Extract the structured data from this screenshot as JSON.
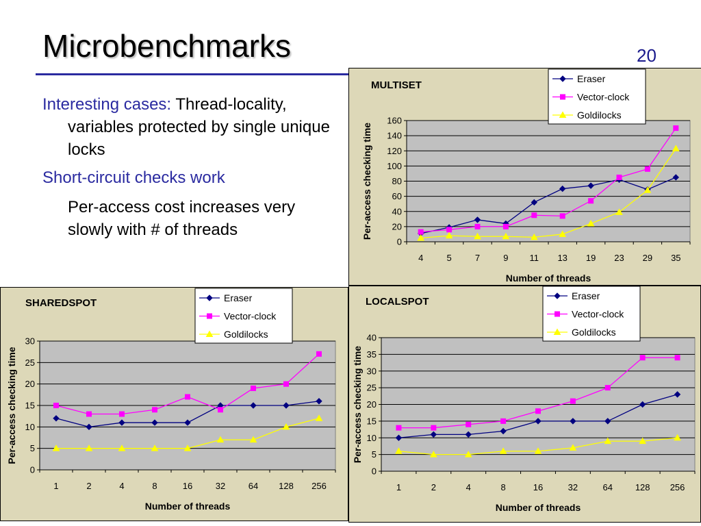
{
  "slide": {
    "title": "Microbenchmarks",
    "page_number": "20",
    "bullet1_lead": "Interesting cases:",
    "bullet1_rest": " Thread-locality, variables protected by single unique locks",
    "bullet2": "Short-circuit checks work",
    "bullet2_sub": "Per-access cost increases very slowly with # of threads"
  },
  "colors": {
    "eraser": "#000080",
    "vector_clock": "#ff00ff",
    "goldilocks": "#ffff00",
    "plot_bg": "#c0c0c0",
    "panel_bg": "#ddd8b8"
  },
  "chart_data": [
    {
      "id": "multiset",
      "type": "line",
      "title": "MULTISET",
      "xlabel": "Number of threads",
      "ylabel": "Per-access checking time",
      "categories": [
        "4",
        "5",
        "7",
        "9",
        "11",
        "13",
        "19",
        "23",
        "29",
        "35"
      ],
      "ylim": [
        0,
        160
      ],
      "yticks": [
        0,
        20,
        40,
        60,
        80,
        100,
        120,
        140,
        160
      ],
      "grid": true,
      "legend": "top-right",
      "series": [
        {
          "name": "Eraser",
          "marker": "diamond",
          "values": [
            11,
            19,
            29,
            24,
            52,
            70,
            74,
            82,
            69,
            85
          ]
        },
        {
          "name": "Vector-clock",
          "marker": "square",
          "values": [
            13,
            16,
            20,
            20,
            35,
            34,
            54,
            85,
            96,
            150
          ]
        },
        {
          "name": "Goldilocks",
          "marker": "triangle",
          "values": [
            5,
            8,
            7,
            7,
            6,
            10,
            24,
            39,
            68,
            123
          ]
        }
      ]
    },
    {
      "id": "sharedspot",
      "type": "line",
      "title": "SHAREDSPOT",
      "xlabel": "Number of threads",
      "ylabel": "Per-access checking time",
      "categories": [
        "1",
        "2",
        "4",
        "8",
        "16",
        "32",
        "64",
        "128",
        "256"
      ],
      "ylim": [
        0,
        30
      ],
      "yticks": [
        0,
        5,
        10,
        15,
        20,
        25,
        30
      ],
      "grid": true,
      "legend": "top-right",
      "series": [
        {
          "name": "Eraser",
          "marker": "diamond",
          "values": [
            12,
            10,
            11,
            11,
            11,
            15,
            15,
            15,
            16
          ]
        },
        {
          "name": "Vector-clock",
          "marker": "square",
          "values": [
            15,
            13,
            13,
            14,
            17,
            14,
            19,
            20,
            27
          ]
        },
        {
          "name": "Goldilocks",
          "marker": "triangle",
          "values": [
            5,
            5,
            5,
            5,
            5,
            7,
            7,
            10,
            12
          ]
        }
      ]
    },
    {
      "id": "localspot",
      "type": "line",
      "title": "LOCALSPOT",
      "xlabel": "Number of threads",
      "ylabel": "Per-access checking time",
      "categories": [
        "1",
        "2",
        "4",
        "8",
        "16",
        "32",
        "64",
        "128",
        "256"
      ],
      "ylim": [
        0,
        40
      ],
      "yticks": [
        0,
        5,
        10,
        15,
        20,
        25,
        30,
        35,
        40
      ],
      "grid": true,
      "legend": "top-right",
      "series": [
        {
          "name": "Eraser",
          "marker": "diamond",
          "values": [
            10,
            11,
            11,
            12,
            15,
            15,
            15,
            20,
            23
          ]
        },
        {
          "name": "Vector-clock",
          "marker": "square",
          "values": [
            13,
            13,
            14,
            15,
            18,
            21,
            25,
            34,
            34
          ]
        },
        {
          "name": "Goldilocks",
          "marker": "triangle",
          "values": [
            6,
            5,
            5,
            6,
            6,
            7,
            9,
            9,
            10
          ]
        }
      ]
    }
  ]
}
